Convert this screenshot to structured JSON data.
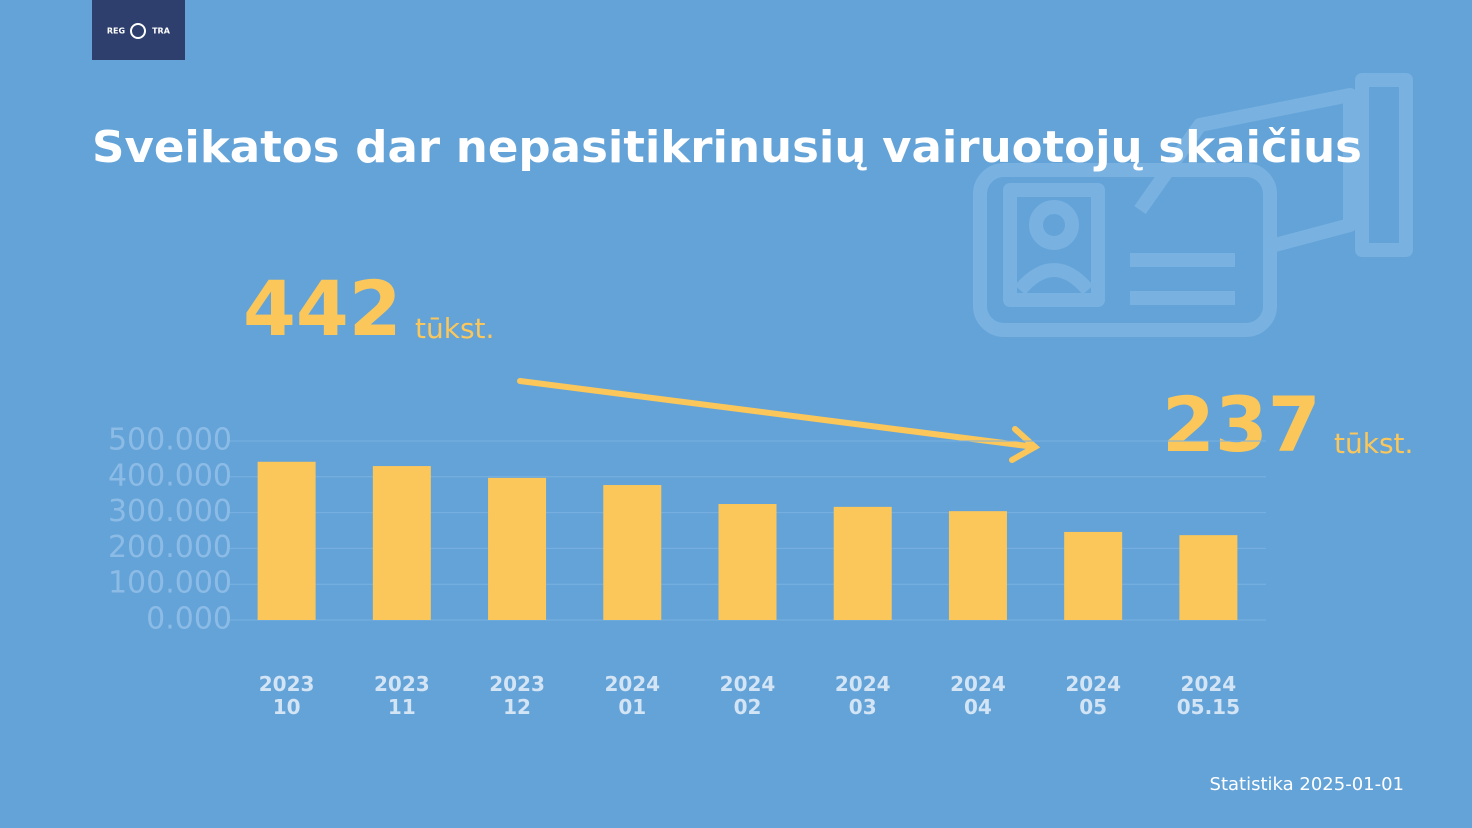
{
  "logo": {
    "left": "REG",
    "right": "TRA"
  },
  "chart_data": {
    "type": "bar",
    "title": "Sveikatos dar nepasitikrinusių vairuotojų skaičius",
    "categories": [
      "2023 10",
      "2023 11",
      "2023 12",
      "2024 01",
      "2024 02",
      "2024 03",
      "2024 04",
      "2024 05",
      "2024 05.15"
    ],
    "values": [
      442000,
      430000,
      397000,
      377000,
      324000,
      316000,
      304000,
      246000,
      237000
    ],
    "color": "#fbc75a",
    "ylim": [
      0,
      500000
    ],
    "yticks": [
      {
        "value": 0,
        "label": "0.000"
      },
      {
        "value": 100000,
        "label": "100.000"
      },
      {
        "value": 200000,
        "label": "200.000"
      },
      {
        "value": 300000,
        "label": "300.000"
      },
      {
        "value": 400000,
        "label": "400.000"
      },
      {
        "value": 500000,
        "label": "500.000"
      }
    ],
    "grid": true,
    "annotations": [
      {
        "text": "442",
        "unit": "tūkst."
      },
      {
        "text": "237",
        "unit": "tūkst."
      }
    ],
    "footnote": "Statistika 2025-01-01"
  }
}
